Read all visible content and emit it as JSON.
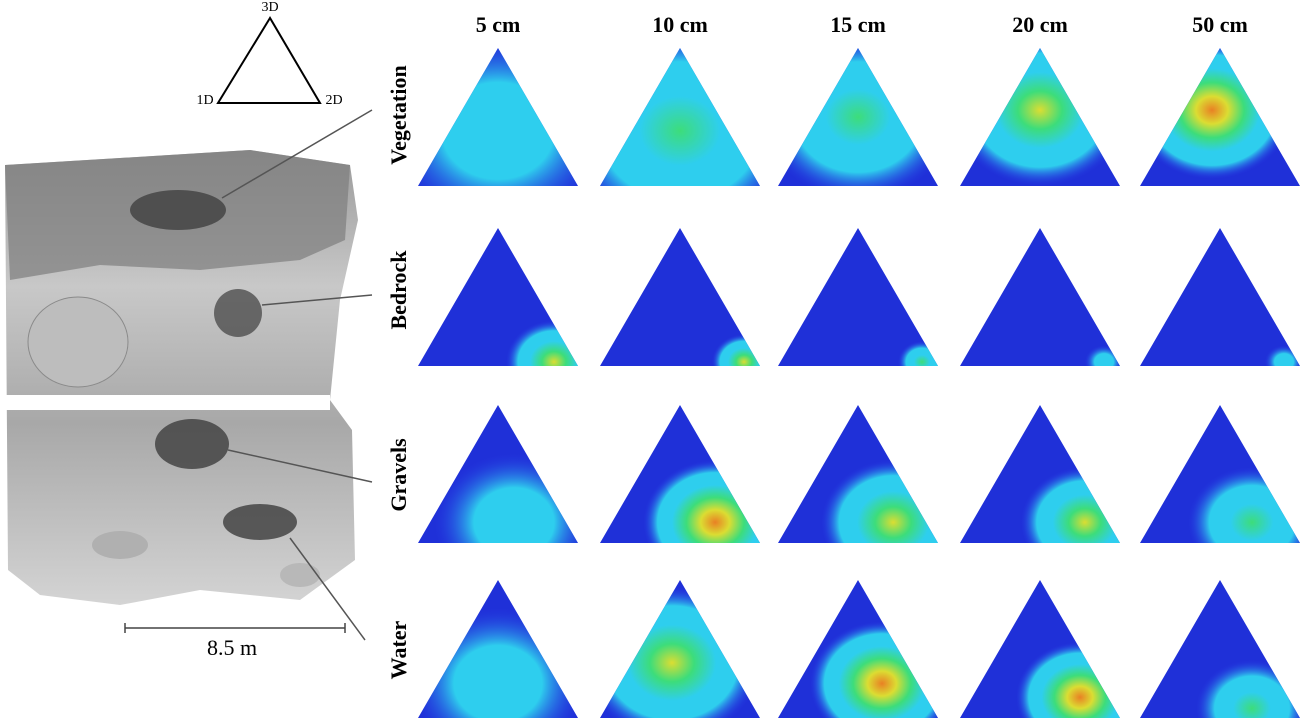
{
  "ternary_key": {
    "top": "3D",
    "left": "1D",
    "right": "2D"
  },
  "columns": [
    "5 cm",
    "10 cm",
    "15 cm",
    "20 cm",
    "50 cm"
  ],
  "rows": [
    "Vegetation",
    "Bedrock",
    "Gravels",
    "Water"
  ],
  "scale_bar": "8.5 m"
}
